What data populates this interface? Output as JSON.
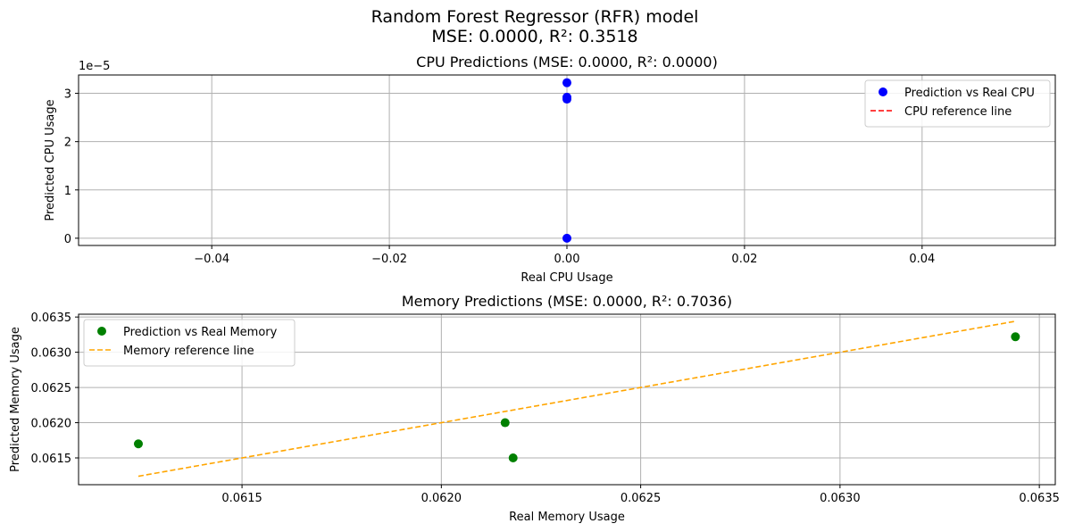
{
  "suptitle": {
    "line1": "Random Forest Regressor (RFR) model",
    "line2": "MSE: 0.0000, R²: 0.3518"
  },
  "chart_data": [
    {
      "type": "scatter",
      "title": "CPU Predictions (MSE: 0.0000, R²: 0.0000)",
      "xlabel": "Real CPU Usage",
      "ylabel": "Predicted CPU Usage",
      "y_offset_label": "1e−5",
      "xlim": [
        -0.055,
        0.055
      ],
      "ylim": [
        -0.15,
        3.38
      ],
      "x_ticks": [
        -0.04,
        -0.02,
        0.0,
        0.02,
        0.04
      ],
      "x_tick_labels": [
        "−0.04",
        "−0.02",
        "0.00",
        "0.02",
        "0.04"
      ],
      "y_ticks": [
        0,
        1,
        2,
        3
      ],
      "y_tick_labels": [
        "0",
        "1",
        "2",
        "3"
      ],
      "grid": true,
      "legend_position": "upper-right",
      "series": [
        {
          "name": "Prediction vs Real CPU",
          "kind": "scatter",
          "color": "#0000ff",
          "x": [
            0.0,
            0.0,
            0.0,
            0.0
          ],
          "y": [
            3.22,
            2.92,
            2.88,
            0.0
          ]
        },
        {
          "name": "CPU reference line",
          "kind": "line",
          "style": "dashed",
          "color": "#ff0000",
          "x": [
            0.0,
            0.0
          ],
          "y": [
            0.0,
            0.0
          ]
        }
      ]
    },
    {
      "type": "scatter",
      "title": "Memory Predictions (MSE: 0.0000, R²: 0.7036)",
      "xlabel": "Real Memory Usage",
      "ylabel": "Predicted Memory Usage",
      "xlim": [
        0.06109,
        0.06354
      ],
      "ylim": [
        0.06112,
        0.06354
      ],
      "x_ticks": [
        0.0615,
        0.062,
        0.0625,
        0.063,
        0.0635
      ],
      "x_tick_labels": [
        "0.0615",
        "0.0620",
        "0.0625",
        "0.0630",
        "0.0635"
      ],
      "y_ticks": [
        0.0615,
        0.062,
        0.0625,
        0.063,
        0.0635
      ],
      "y_tick_labels": [
        "0.0615",
        "0.0620",
        "0.0625",
        "0.0630",
        "0.0635"
      ],
      "grid": true,
      "legend_position": "upper-left",
      "series": [
        {
          "name": "Prediction vs Real Memory",
          "kind": "scatter",
          "color": "#008000",
          "x": [
            0.06124,
            0.06216,
            0.06218,
            0.06344
          ],
          "y": [
            0.0617,
            0.062,
            0.0615,
            0.06322
          ]
        },
        {
          "name": "Memory reference line",
          "kind": "line",
          "style": "dashed",
          "color": "#ffa500",
          "x": [
            0.06124,
            0.06344
          ],
          "y": [
            0.06124,
            0.06344
          ]
        }
      ]
    }
  ]
}
